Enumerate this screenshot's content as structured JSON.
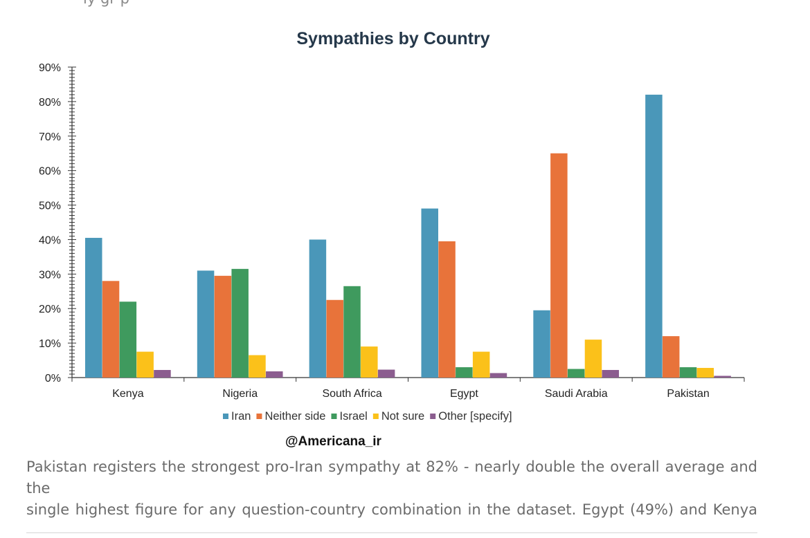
{
  "top_cropped_text": "ly gr p",
  "watermark": "@Americana_ir",
  "caption": {
    "line1": "Pakistan registers the strongest pro-Iran sympathy at 82% - nearly double the overall average and the",
    "line2": "single highest figure for any question-country combination in the dataset. Egypt (49%) and Kenya"
  },
  "chart_data": {
    "type": "bar",
    "title": "Sympathies by Country",
    "xlabel": "",
    "ylabel": "",
    "ylim": [
      0,
      90
    ],
    "yticks": [
      0,
      10,
      20,
      30,
      40,
      50,
      60,
      70,
      80,
      90
    ],
    "ytick_labels": [
      "0%",
      "10%",
      "20%",
      "30%",
      "40%",
      "50%",
      "60%",
      "70%",
      "80%",
      "90%"
    ],
    "categories": [
      "Kenya",
      "Nigeria",
      "South Africa",
      "Egypt",
      "Saudi Arabia",
      "Pakistan"
    ],
    "legend_position": "bottom",
    "series": [
      {
        "name": "Iran",
        "color": "#4a97b9",
        "values": [
          40.5,
          31,
          40,
          49,
          19.5,
          82
        ]
      },
      {
        "name": "Neither side",
        "color": "#e8733a",
        "values": [
          28,
          29.5,
          22.5,
          39.5,
          65,
          12
        ]
      },
      {
        "name": "Israel",
        "color": "#3f9a5e",
        "values": [
          22,
          31.5,
          26.5,
          3,
          2.5,
          3
        ]
      },
      {
        "name": "Not sure",
        "color": "#fbc11a",
        "values": [
          7.5,
          6.5,
          9,
          7.5,
          11,
          2.8
        ]
      },
      {
        "name": "Other [specify]",
        "color": "#8b5d8f",
        "values": [
          2.2,
          1.8,
          2.3,
          1.3,
          2.2,
          0.5
        ]
      }
    ]
  }
}
